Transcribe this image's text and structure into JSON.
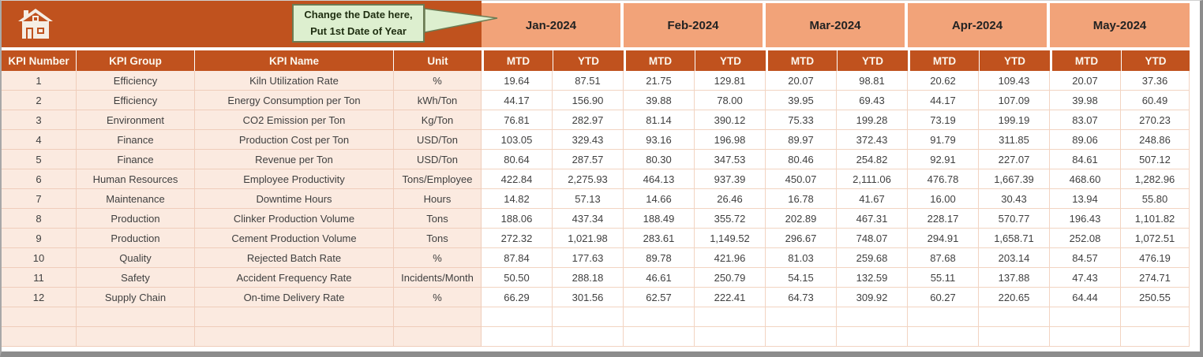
{
  "header_band": {
    "home_icon": "home",
    "callout": {
      "line1": "Change the Date here,",
      "line2": "Put 1st Date of Year"
    }
  },
  "months": [
    "Jan-2024",
    "Feb-2024",
    "Mar-2024",
    "Apr-2024",
    "May-2024"
  ],
  "sub_headers": [
    "MTD",
    "YTD"
  ],
  "table": {
    "headers": [
      "KPI Number",
      "KPI Group",
      "KPI Name",
      "Unit"
    ],
    "rows": [
      {
        "number": "1",
        "group": "Efficiency",
        "name": "Kiln Utilization Rate",
        "unit": "%",
        "values": [
          "19.64",
          "87.51",
          "21.75",
          "129.81",
          "20.07",
          "98.81",
          "20.62",
          "109.43",
          "20.07",
          "37.36"
        ]
      },
      {
        "number": "2",
        "group": "Efficiency",
        "name": "Energy Consumption per Ton",
        "unit": "kWh/Ton",
        "values": [
          "44.17",
          "156.90",
          "39.88",
          "78.00",
          "39.95",
          "69.43",
          "44.17",
          "107.09",
          "39.98",
          "60.49"
        ]
      },
      {
        "number": "3",
        "group": "Environment",
        "name": "CO2 Emission per Ton",
        "unit": "Kg/Ton",
        "values": [
          "76.81",
          "282.97",
          "81.14",
          "390.12",
          "75.33",
          "199.28",
          "73.19",
          "199.19",
          "83.07",
          "270.23"
        ]
      },
      {
        "number": "4",
        "group": "Finance",
        "name": "Production Cost per Ton",
        "unit": "USD/Ton",
        "values": [
          "103.05",
          "329.43",
          "93.16",
          "196.98",
          "89.97",
          "372.43",
          "91.79",
          "311.85",
          "89.06",
          "248.86"
        ]
      },
      {
        "number": "5",
        "group": "Finance",
        "name": "Revenue per Ton",
        "unit": "USD/Ton",
        "values": [
          "80.64",
          "287.57",
          "80.30",
          "347.53",
          "80.46",
          "254.82",
          "92.91",
          "227.07",
          "84.61",
          "507.12"
        ]
      },
      {
        "number": "6",
        "group": "Human Resources",
        "name": "Employee Productivity",
        "unit": "Tons/Employee",
        "values": [
          "422.84",
          "2,275.93",
          "464.13",
          "937.39",
          "450.07",
          "2,111.06",
          "476.78",
          "1,667.39",
          "468.60",
          "1,282.96"
        ]
      },
      {
        "number": "7",
        "group": "Maintenance",
        "name": "Downtime Hours",
        "unit": "Hours",
        "values": [
          "14.82",
          "57.13",
          "14.66",
          "26.46",
          "16.78",
          "41.67",
          "16.00",
          "30.43",
          "13.94",
          "55.80"
        ]
      },
      {
        "number": "8",
        "group": "Production",
        "name": "Clinker Production Volume",
        "unit": "Tons",
        "values": [
          "188.06",
          "437.34",
          "188.49",
          "355.72",
          "202.89",
          "467.31",
          "228.17",
          "570.77",
          "196.43",
          "1,101.82"
        ]
      },
      {
        "number": "9",
        "group": "Production",
        "name": "Cement Production Volume",
        "unit": "Tons",
        "values": [
          "272.32",
          "1,021.98",
          "283.61",
          "1,149.52",
          "296.67",
          "748.07",
          "294.91",
          "1,658.71",
          "252.08",
          "1,072.51"
        ]
      },
      {
        "number": "10",
        "group": "Quality",
        "name": "Rejected Batch Rate",
        "unit": "%",
        "values": [
          "87.84",
          "177.63",
          "89.78",
          "421.96",
          "81.03",
          "259.68",
          "87.68",
          "203.14",
          "84.57",
          "476.19"
        ]
      },
      {
        "number": "11",
        "group": "Safety",
        "name": "Accident Frequency Rate",
        "unit": "Incidents/Month",
        "values": [
          "50.50",
          "288.18",
          "46.61",
          "250.79",
          "54.15",
          "132.59",
          "55.11",
          "137.88",
          "47.43",
          "274.71"
        ]
      },
      {
        "number": "12",
        "group": "Supply Chain",
        "name": "On-time Delivery Rate",
        "unit": "%",
        "values": [
          "66.29",
          "301.56",
          "62.57",
          "222.41",
          "64.73",
          "309.92",
          "60.27",
          "220.65",
          "64.44",
          "250.55"
        ]
      }
    ],
    "empty_row_count": 2
  },
  "colors": {
    "dark_orange": "#C0521E",
    "salmon": "#F2A379",
    "row_peach": "#FBEAE0",
    "grid_line": "#F2D4C2",
    "callout_fill": "#DDEFCF",
    "callout_border": "#6C7C54",
    "frame_gray": "#8C8C8C"
  }
}
